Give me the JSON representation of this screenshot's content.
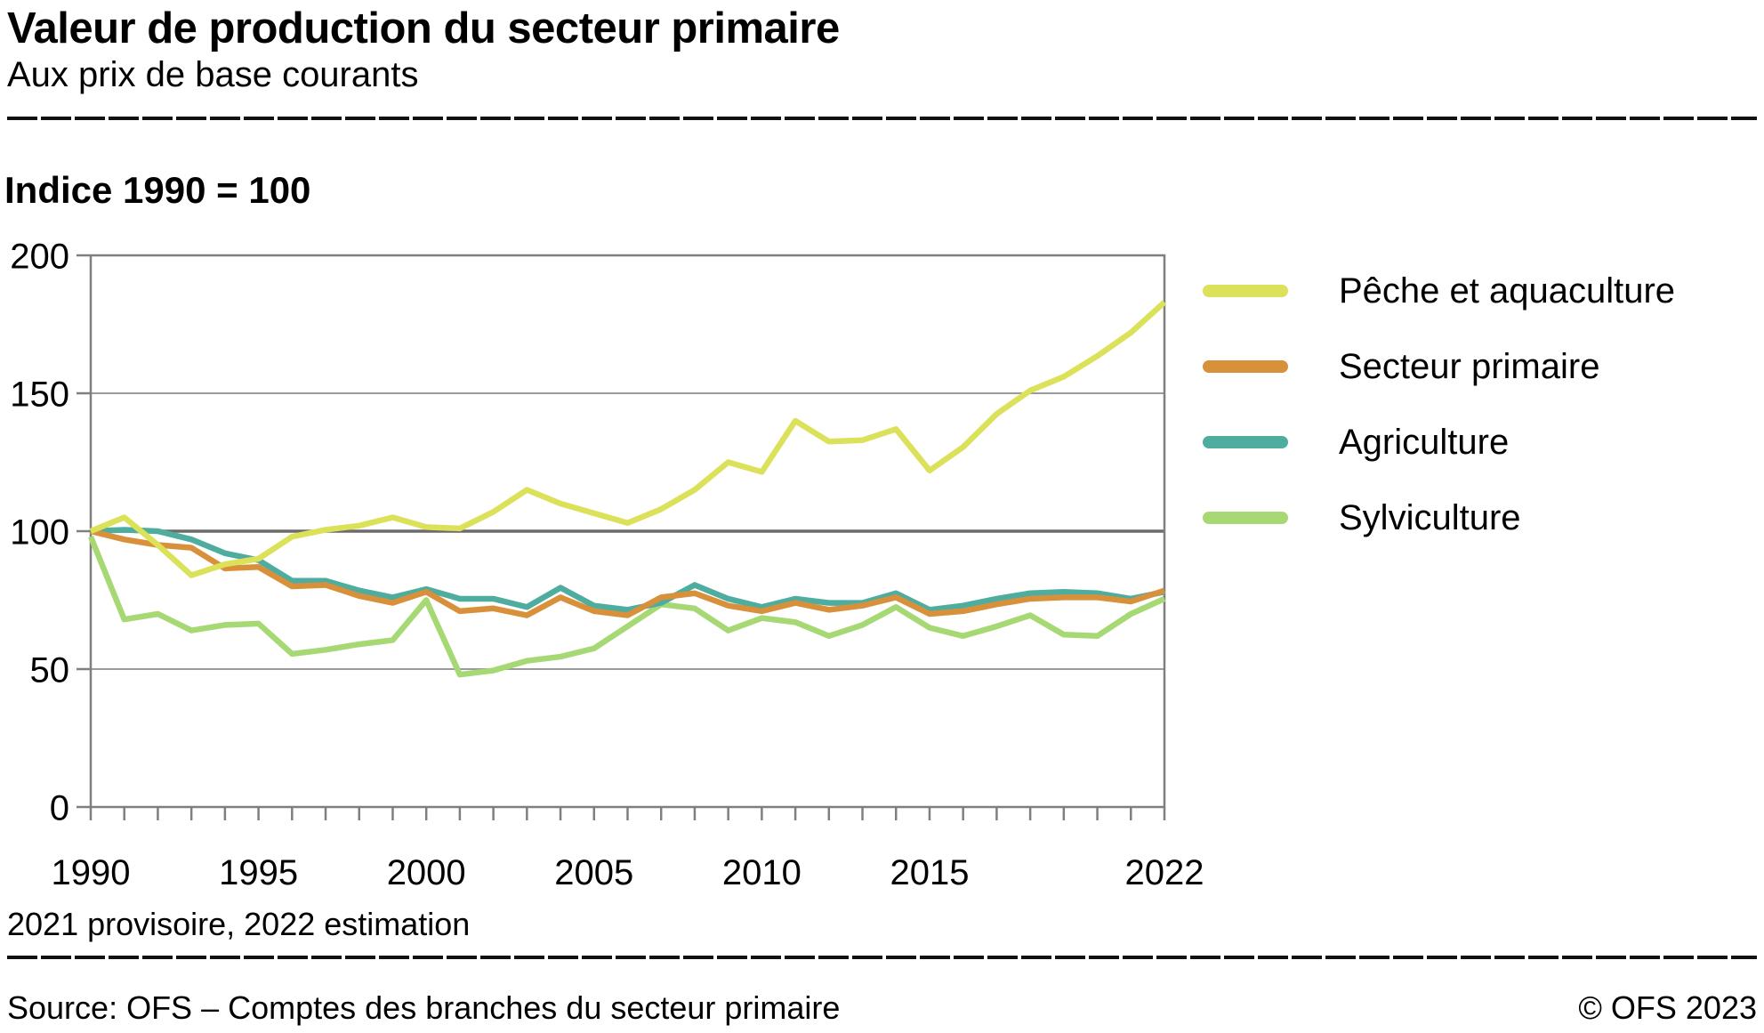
{
  "header": {
    "title": "Valeur de production du secteur primaire",
    "subtitle": "Aux prix de base courants"
  },
  "index_label": "Indice 1990 = 100",
  "footnote": "2021 provisoire, 2022 estimation",
  "source": "Source: OFS – Comptes des branches du secteur primaire",
  "copyright": "© OFS 2023",
  "colors": {
    "grid": "#9a9a9a",
    "grid_emphasized": "#6b6b6b",
    "plot_border": "#7f7f7f",
    "tick": "#7f7f7f",
    "text": "#000000"
  },
  "chart_data": {
    "type": "line",
    "title": "Valeur de production du secteur primaire",
    "subtitle": "Aux prix de base courants",
    "unit_note": "Indice 1990 = 100",
    "x": [
      1990,
      1991,
      1992,
      1993,
      1994,
      1995,
      1996,
      1997,
      1998,
      1999,
      2000,
      2001,
      2002,
      2003,
      2004,
      2005,
      2006,
      2007,
      2008,
      2009,
      2010,
      2011,
      2012,
      2013,
      2014,
      2015,
      2016,
      2017,
      2018,
      2019,
      2020,
      2021,
      2022
    ],
    "x_tick_labels": [
      "1990",
      "1995",
      "2000",
      "2005",
      "2010",
      "2015",
      "2022"
    ],
    "x_tick_years": [
      1990,
      1995,
      2000,
      2005,
      2010,
      2015,
      2022
    ],
    "ylim": [
      0,
      200
    ],
    "y_ticks": [
      0,
      50,
      100,
      150,
      200
    ],
    "emphasized_gridline": 100,
    "grid": true,
    "legend_position": "right",
    "series": [
      {
        "name": "Pêche et aquaculture",
        "color": "#dce15a",
        "values": [
          100,
          105,
          95,
          84,
          88,
          90,
          98,
          100.5,
          102,
          105,
          101.5,
          101,
          107,
          115,
          110,
          106.5,
          103,
          108,
          115,
          125,
          121.5,
          140,
          132.5,
          133,
          137,
          122,
          130.5,
          142.5,
          151,
          156,
          163.5,
          172,
          183
        ]
      },
      {
        "name": "Secteur primaire",
        "color": "#d8903a",
        "values": [
          100,
          97,
          95,
          94,
          86.5,
          87,
          80,
          80.5,
          76.5,
          74,
          78,
          71,
          72,
          69.5,
          76,
          71,
          69.5,
          76,
          77.5,
          73,
          71,
          74,
          71.5,
          73,
          76,
          70,
          71,
          73.5,
          75.5,
          76,
          76,
          74.5,
          78.5
        ]
      },
      {
        "name": "Agriculture",
        "color": "#4fada0",
        "values": [
          100,
          100.5,
          100,
          97,
          92,
          89.5,
          82,
          82,
          78.5,
          76,
          79,
          75.5,
          75.5,
          72.5,
          79.5,
          73,
          71.5,
          74,
          80.5,
          75.5,
          72.5,
          75.5,
          74,
          74,
          77.5,
          71.5,
          73,
          75.5,
          77.5,
          78,
          77.5,
          75.5,
          78
        ]
      },
      {
        "name": "Sylviculture",
        "color": "#a6d873",
        "values": [
          98,
          68,
          70,
          64,
          66,
          66.5,
          55.5,
          57,
          59,
          60.5,
          75,
          48,
          49.5,
          53,
          54.5,
          57.5,
          65.5,
          73.5,
          72,
          64,
          68.5,
          67,
          62,
          66,
          72.5,
          65,
          62,
          65.5,
          69.5,
          62.5,
          62,
          70,
          75.5
        ]
      }
    ]
  }
}
